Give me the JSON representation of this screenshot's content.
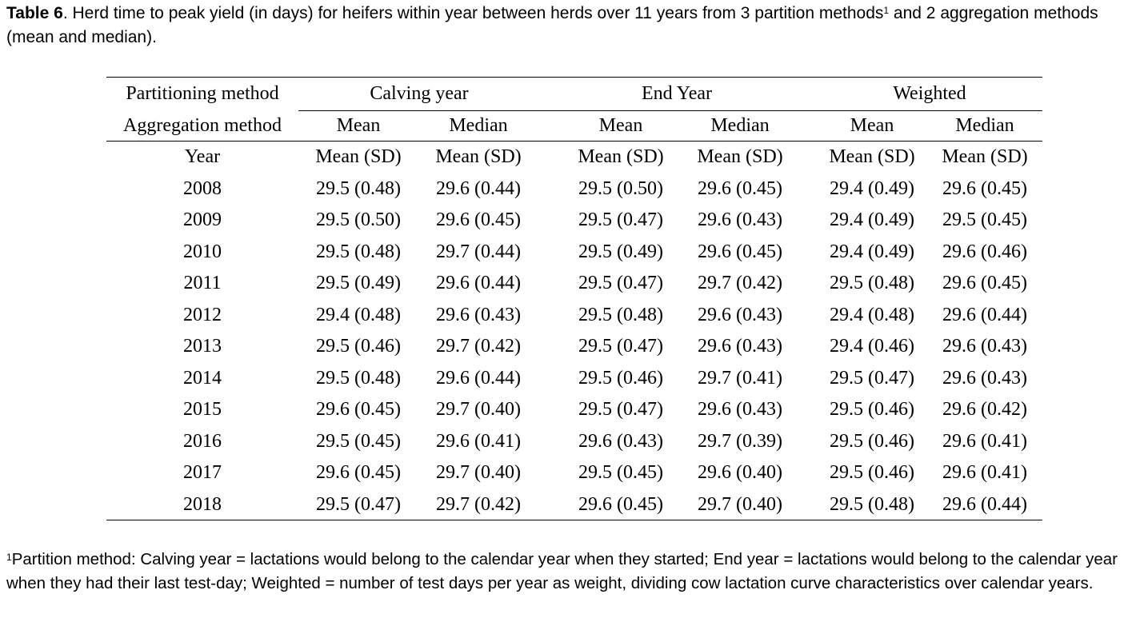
{
  "caption": {
    "label": "Table 6",
    "text": ". Herd time to peak yield (in days) for heifers within year between herds over 11 years from 3 partition methods",
    "sup": "1",
    "text2": " and 2 aggregation methods (mean and median)."
  },
  "table": {
    "partition_label": "Partitioning method",
    "aggregation_label": "Aggregation method",
    "partitions": [
      "Calving year",
      "End Year",
      "Weighted"
    ],
    "aggregations": [
      "Mean",
      "Median",
      "Mean",
      "Median",
      "Mean",
      "Median"
    ],
    "year_label": "Year",
    "stat_labels": [
      "Mean (SD)",
      "Mean (SD)",
      "Mean (SD)",
      "Mean (SD)",
      "Mean (SD)",
      "Mean (SD)"
    ],
    "rows": [
      {
        "year": "2008",
        "values": [
          "29.5 (0.48)",
          "29.6 (0.44)",
          "29.5 (0.50)",
          "29.6 (0.45)",
          "29.4 (0.49)",
          "29.6 (0.45)"
        ]
      },
      {
        "year": "2009",
        "values": [
          "29.5 (0.50)",
          "29.6 (0.45)",
          "29.5 (0.47)",
          "29.6 (0.43)",
          "29.4 (0.49)",
          "29.5 (0.45)"
        ]
      },
      {
        "year": "2010",
        "values": [
          "29.5 (0.48)",
          "29.7 (0.44)",
          "29.5 (0.49)",
          "29.6 (0.45)",
          "29.4 (0.49)",
          "29.6 (0.46)"
        ]
      },
      {
        "year": "2011",
        "values": [
          "29.5 (0.49)",
          "29.6 (0.44)",
          "29.5 (0.47)",
          "29.7 (0.42)",
          "29.5 (0.48)",
          "29.6 (0.45)"
        ]
      },
      {
        "year": "2012",
        "values": [
          "29.4 (0.48)",
          "29.6 (0.43)",
          "29.5 (0.48)",
          "29.6 (0.43)",
          "29.4 (0.48)",
          "29.6 (0.44)"
        ]
      },
      {
        "year": "2013",
        "values": [
          "29.5 (0.46)",
          "29.7 (0.42)",
          "29.5 (0.47)",
          "29.6 (0.43)",
          "29.4 (0.46)",
          "29.6 (0.43)"
        ]
      },
      {
        "year": "2014",
        "values": [
          "29.5 (0.48)",
          "29.6 (0.44)",
          "29.5 (0.46)",
          "29.7 (0.41)",
          "29.5 (0.47)",
          "29.6 (0.43)"
        ]
      },
      {
        "year": "2015",
        "values": [
          "29.6 (0.45)",
          "29.7 (0.40)",
          "29.5 (0.47)",
          "29.6 (0.43)",
          "29.5 (0.46)",
          "29.6 (0.42)"
        ]
      },
      {
        "year": "2016",
        "values": [
          "29.5 (0.45)",
          "29.6 (0.41)",
          "29.6 (0.43)",
          "29.7 (0.39)",
          "29.5 (0.46)",
          "29.6 (0.41)"
        ]
      },
      {
        "year": "2017",
        "values": [
          "29.6 (0.45)",
          "29.7 (0.40)",
          "29.5 (0.45)",
          "29.6 (0.40)",
          "29.5 (0.46)",
          "29.6 (0.41)"
        ]
      },
      {
        "year": "2018",
        "values": [
          "29.5 (0.47)",
          "29.7 (0.42)",
          "29.6 (0.45)",
          "29.7 (0.40)",
          "29.5 (0.48)",
          "29.6 (0.44)"
        ]
      }
    ]
  },
  "footnote": {
    "sup": "1",
    "text": "Partition method: Calving year = lactations would belong to the calendar year when they started; End year = lactations would belong to the calendar year when they had their last test-day; Weighted = number of test days per year as weight, dividing cow lactation curve characteristics over calendar years."
  }
}
